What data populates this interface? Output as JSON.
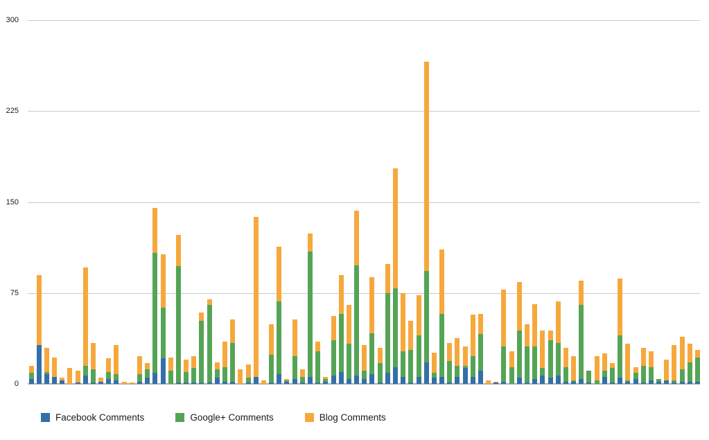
{
  "chart_data": {
    "type": "bar",
    "stacked": true,
    "title": "",
    "xlabel": "",
    "ylabel": "",
    "ylim": [
      0,
      300
    ],
    "y_ticks": [
      0,
      75,
      150,
      225,
      300
    ],
    "x_tick_labels": [],
    "grid": "horizontal",
    "legend_position": "bottom-left",
    "num_bars": 87,
    "series": [
      {
        "name": "Facebook Comments",
        "color": "#336fa8",
        "values": [
          4,
          32,
          8,
          6,
          3,
          0,
          1,
          7,
          1,
          2,
          4,
          3,
          0,
          0,
          2,
          5,
          9,
          21,
          0,
          1,
          1,
          1,
          1,
          1,
          5,
          2,
          2,
          0,
          1,
          6,
          0,
          1,
          8,
          2,
          4,
          1,
          6,
          1,
          2,
          7,
          10,
          4,
          7,
          4,
          8,
          1,
          9,
          14,
          6,
          1,
          6,
          18,
          5,
          6,
          1,
          6,
          13,
          6,
          11,
          0,
          1,
          2,
          0,
          5,
          1,
          4,
          7,
          5,
          7,
          2,
          2,
          4,
          1,
          0,
          6,
          1,
          5,
          2,
          4,
          1,
          3,
          2,
          3,
          1,
          2,
          2,
          2
        ]
      },
      {
        "name": "Google+ Comments",
        "color": "#55a455",
        "values": [
          5,
          0,
          2,
          0,
          0,
          0,
          0,
          8,
          11,
          0,
          6,
          5,
          0,
          0,
          6,
          7,
          99,
          42,
          11,
          96,
          9,
          12,
          51,
          64,
          7,
          12,
          32,
          0,
          4,
          0,
          0,
          23,
          60,
          1,
          19,
          5,
          103,
          26,
          2,
          29,
          48,
          29,
          91,
          7,
          34,
          16,
          66,
          65,
          21,
          27,
          34,
          75,
          4,
          52,
          18,
          9,
          2,
          17,
          30,
          0,
          0,
          29,
          14,
          39,
          30,
          27,
          6,
          31,
          27,
          12,
          1,
          61,
          10,
          3,
          5,
          12,
          35,
          1,
          5,
          14,
          11,
          2,
          0,
          2,
          10,
          16,
          20
        ]
      },
      {
        "name": "Blog Comments",
        "color": "#f6a83c",
        "values": [
          6,
          58,
          20,
          16,
          2,
          13,
          10,
          81,
          22,
          3,
          11,
          24,
          2,
          1,
          15,
          5,
          37,
          44,
          11,
          26,
          10,
          10,
          7,
          5,
          6,
          21,
          19,
          12,
          11,
          132,
          3,
          25,
          45,
          1,
          30,
          6,
          15,
          8,
          2,
          20,
          32,
          32,
          45,
          21,
          46,
          13,
          24,
          99,
          48,
          24,
          33,
          173,
          17,
          53,
          15,
          23,
          16,
          34,
          17,
          3,
          1,
          47,
          13,
          40,
          18,
          35,
          31,
          8,
          34,
          16,
          20,
          20,
          0,
          20,
          14,
          4,
          47,
          30,
          5,
          15,
          13,
          0,
          17,
          29,
          27,
          15,
          6
        ]
      }
    ]
  },
  "axis": {
    "tick_labels": [
      "0",
      "75",
      "150",
      "225",
      "300"
    ]
  },
  "legend": {
    "items": [
      "Facebook Comments",
      "Google+ Comments",
      "Blog Comments"
    ]
  },
  "colors": {
    "background": "#ffffff",
    "gridline": "#c9c9c9",
    "baseline": "#aeaeae",
    "text": "#1a1a1a"
  }
}
